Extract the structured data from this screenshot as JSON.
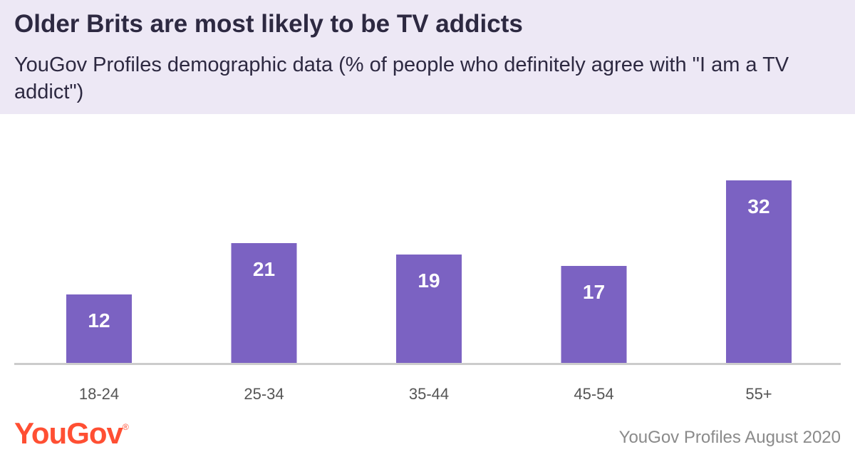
{
  "header": {
    "title": "Older Brits are most likely to be TV addicts",
    "subtitle": "YouGov Profiles demographic data (% of people who definitely agree with \"I am a TV addict\")"
  },
  "footer": {
    "logo": "YouGov",
    "source": "YouGov Profiles August 2020"
  },
  "colors": {
    "bar": "#7b62c2",
    "header_bg": "#ede8f5",
    "title": "#2d2941",
    "logo": "#ff4f33",
    "axis": "#cccccc",
    "tick_label": "#555555",
    "value_label": "#ffffff"
  },
  "chart_data": {
    "type": "bar",
    "categories": [
      "18-24",
      "25-34",
      "35-44",
      "45-54",
      "55+"
    ],
    "values": [
      12,
      21,
      19,
      17,
      32
    ],
    "title": "Older Brits are most likely to be TV addicts",
    "subtitle": "YouGov Profiles demographic data (% of people who definitely agree with \"I am a TV addict\")",
    "xlabel": "",
    "ylabel": "",
    "ylim": [
      0,
      40
    ],
    "grid": false,
    "legend": "none",
    "data_labels": "inside-top"
  }
}
